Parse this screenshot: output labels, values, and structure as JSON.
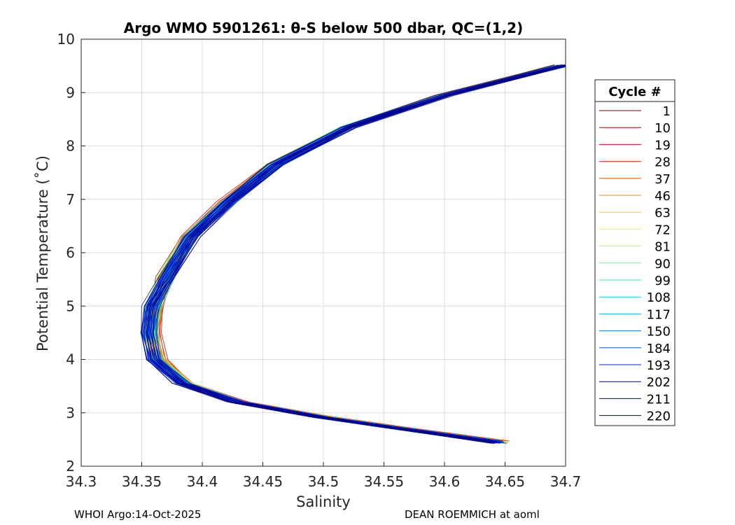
{
  "chart_data": {
    "type": "line",
    "title": "Argo WMO 5901261: θ-S below 500 dbar,  QC=(1,2)",
    "xlabel": "Salinity",
    "ylabel": "Potential Temperature (˚C)",
    "xlim": [
      34.3,
      34.7
    ],
    "ylim": [
      2,
      10
    ],
    "xticks": [
      "34.3",
      "34.35",
      "34.4",
      "34.45",
      "34.5",
      "34.55",
      "34.6",
      "34.65",
      "34.7"
    ],
    "yticks": [
      "2",
      "3",
      "4",
      "5",
      "6",
      "7",
      "8",
      "9",
      "10"
    ],
    "grid": true,
    "legend": {
      "title": "Cycle #",
      "placement": "outside-right",
      "entries": [
        {
          "label": "1",
          "color": "#800000"
        },
        {
          "label": "10",
          "color": "#b00000"
        },
        {
          "label": "19",
          "color": "#e00000"
        },
        {
          "label": "28",
          "color": "#ff2000"
        },
        {
          "label": "37",
          "color": "#ff5000"
        },
        {
          "label": "46",
          "color": "#ff8c00"
        },
        {
          "label": "63",
          "color": "#ffc800"
        },
        {
          "label": "72",
          "color": "#ffff00"
        },
        {
          "label": "81",
          "color": "#b0ff40"
        },
        {
          "label": "90",
          "color": "#60ff80"
        },
        {
          "label": "99",
          "color": "#20f0c0"
        },
        {
          "label": "108",
          "color": "#00d8e8"
        },
        {
          "label": "117",
          "color": "#00b0ff"
        },
        {
          "label": "150",
          "color": "#0080ff"
        },
        {
          "label": "184",
          "color": "#0050ff"
        },
        {
          "label": "193",
          "color": "#0020e0"
        },
        {
          "label": "202",
          "color": "#0000c0"
        },
        {
          "label": "211",
          "color": "#0000a0"
        },
        {
          "label": "220",
          "color": "#000080"
        }
      ]
    },
    "profile_shape": {
      "description_points": [
        {
          "s": 34.697,
          "t": 9.5
        },
        {
          "s": 34.67,
          "t": 9.35
        },
        {
          "s": 34.6,
          "t": 8.95
        },
        {
          "s": 34.52,
          "t": 8.35
        },
        {
          "s": 34.46,
          "t": 7.65
        },
        {
          "s": 34.42,
          "t": 6.95
        },
        {
          "s": 34.39,
          "t": 6.3
        },
        {
          "s": 34.37,
          "t": 5.55
        },
        {
          "s": 34.36,
          "t": 5.0
        },
        {
          "s": 34.357,
          "t": 4.5
        },
        {
          "s": 34.362,
          "t": 4.0
        },
        {
          "s": 34.385,
          "t": 3.55
        },
        {
          "s": 34.43,
          "t": 3.2
        },
        {
          "s": 34.5,
          "t": 2.92
        },
        {
          "s": 34.56,
          "t": 2.72
        },
        {
          "s": 34.645,
          "t": 2.45
        }
      ]
    }
  },
  "footer": {
    "left": "WHOI Argo:14-Oct-2025",
    "right": "DEAN ROEMMICH at aoml"
  }
}
